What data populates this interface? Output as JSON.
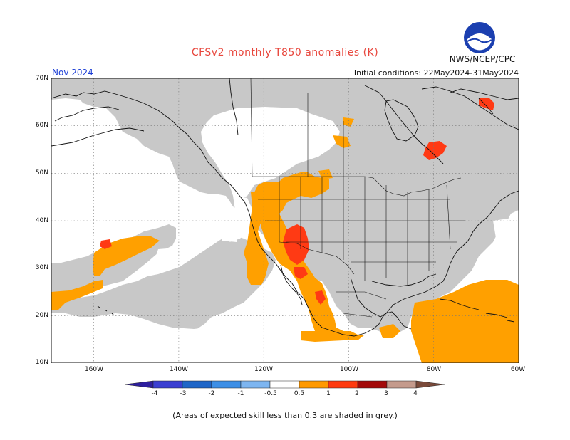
{
  "title": "CFSv2 monthly T850 anomalies (K)",
  "agency": "NWS/NCEP/CPC",
  "logo_text": "NOAA",
  "valid_month": "Nov 2024",
  "initial_conditions": "Initial conditions: 22May2024-31May2024",
  "lat_labels": [
    "70N",
    "60N",
    "50N",
    "40N",
    "30N",
    "20N",
    "10N"
  ],
  "lon_labels": [
    "160W",
    "140W",
    "120W",
    "100W",
    "80W",
    "60W"
  ],
  "colorbar": {
    "labels": [
      "-4",
      "-3",
      "-2",
      "-1",
      "-0.5",
      "0.5",
      "1",
      "2",
      "3",
      "4"
    ],
    "colors": [
      "#2e1f9e",
      "#3b3fd1",
      "#1f66c7",
      "#3d8fe6",
      "#7db5f0",
      "#ffffff",
      "#ff9900",
      "#ff3a0f",
      "#a30a0a",
      "#c49a8c",
      "#7a4a3a"
    ]
  },
  "colors": {
    "land_no_skill": "#c8c8c8",
    "ocean_no_skill": "#c8c8c8",
    "anomaly_05_1": "#ffa000",
    "anomaly_1_2": "#ff3a14",
    "title": "#e8463c",
    "month": "#1d3fd6"
  },
  "map_region": {
    "lat_range": [
      10,
      70
    ],
    "lon_range": [
      -170,
      -60
    ]
  },
  "footnote": "(Areas of expected skill less than 0.3 are shaded in grey.)"
}
